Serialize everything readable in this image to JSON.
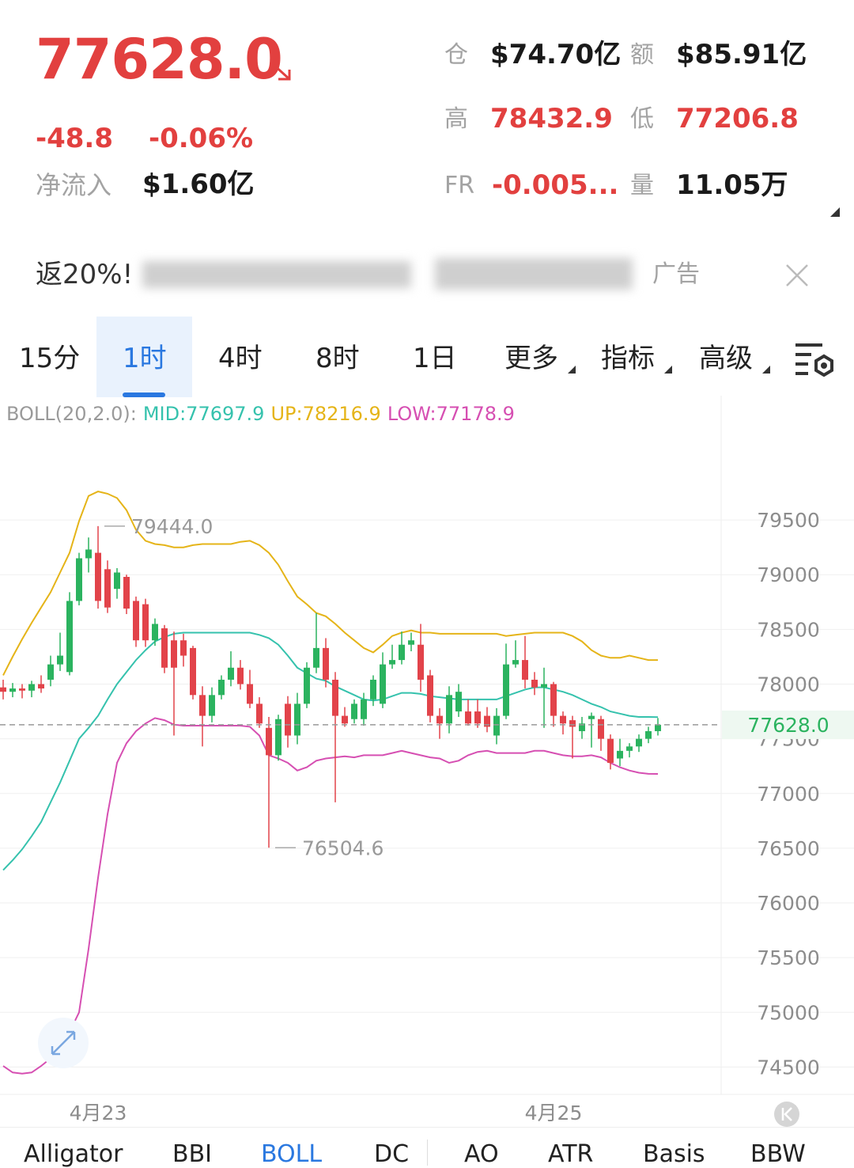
{
  "header": {
    "price": "77628.0",
    "change": "-48.8",
    "change_pct": "-0.06%",
    "net_inflow": {
      "label": "净流入",
      "value": "$1.60亿"
    },
    "stats": [
      {
        "label": "仓",
        "value": "$74.70亿"
      },
      {
        "label": "额",
        "value": "$85.91亿"
      },
      {
        "label": "高",
        "value": "78432.9"
      },
      {
        "label": "低",
        "value": "77206.8"
      },
      {
        "label": "FR",
        "value": "-0.005..."
      },
      {
        "label": "量",
        "value": "11.05万"
      }
    ]
  },
  "ad": {
    "text": "返20%!",
    "tag": "广告"
  },
  "tabs": [
    "15分",
    "1时",
    "4时",
    "8时",
    "1日",
    "更多",
    "指标",
    "高级"
  ],
  "active_tab_index": 1,
  "indicator_tabs": [
    "Alligator",
    "BBI",
    "BOLL",
    "DC",
    "AO",
    "ATR",
    "Basis",
    "BBW"
  ],
  "active_indicator_index": 2,
  "chart_data": {
    "type": "candlestick",
    "indicator_label": "BOLL(20,2.0):",
    "categories": [
      null,
      null,
      null,
      null,
      null,
      null,
      null,
      null,
      null,
      null,
      "4月23",
      null,
      null,
      null,
      null,
      null,
      null,
      null,
      null,
      null,
      null,
      null,
      null,
      null,
      null,
      null,
      null,
      null,
      null,
      null,
      null,
      null,
      null,
      null,
      null,
      null,
      null,
      null,
      null,
      null,
      null,
      null,
      null,
      null,
      null,
      null,
      null,
      null,
      null,
      null,
      null,
      null,
      null,
      null,
      null,
      null,
      null,
      null,
      "4月25",
      null,
      null,
      null,
      null,
      null,
      null,
      null,
      null,
      null,
      null,
      null
    ],
    "candles": {
      "up_color": "#2bb35f",
      "down_color": "#e2434a",
      "open": [
        77970,
        77930,
        77960,
        77940,
        78000,
        78040,
        78180,
        78110,
        78760,
        79150,
        79200,
        79050,
        78870,
        78980,
        78760,
        78730,
        78400,
        78510,
        78400,
        78400,
        78330,
        77900,
        77710,
        77900,
        78040,
        78150,
        78000,
        77820,
        77600,
        77350,
        77820,
        77530,
        77820,
        78150,
        78330,
        78040,
        77710,
        77680,
        77680,
        77860,
        77820,
        78180,
        78220,
        78360,
        78360,
        78080,
        77710,
        77640,
        77750,
        77750,
        77750,
        77710,
        77530,
        77710,
        78180,
        78220,
        78040,
        77970,
        78000,
        77710,
        77670,
        77570,
        77680,
        77680,
        77500,
        77320,
        77390,
        77430,
        77500,
        77570
      ],
      "high": [
        78040,
        78010,
        78000,
        78030,
        78080,
        78260,
        78470,
        78840,
        79200,
        79340,
        79444.0,
        79130,
        79060,
        79000,
        78800,
        78780,
        78600,
        78540,
        78480,
        78460,
        78350,
        77980,
        77970,
        78080,
        78300,
        78220,
        78130,
        77880,
        77700,
        77720,
        77890,
        77920,
        78200,
        78650,
        78420,
        78110,
        77790,
        77860,
        77920,
        78080,
        78290,
        78360,
        78480,
        78470,
        78550,
        78130,
        77780,
        77980,
        78000,
        77860,
        77860,
        77790,
        77780,
        78370,
        78400,
        78440,
        78110,
        78150,
        78020,
        77750,
        77710,
        77700,
        77740,
        77710,
        77540,
        77500,
        77460,
        77540,
        77610,
        77690
      ],
      "low": [
        77860,
        77880,
        77870,
        77880,
        77920,
        77980,
        78120,
        78080,
        78720,
        79020,
        78690,
        78650,
        78780,
        78640,
        78340,
        78340,
        78350,
        78100,
        77530,
        78160,
        77860,
        77430,
        77650,
        77860,
        77980,
        77950,
        77780,
        77600,
        76504.6,
        77300,
        77420,
        77450,
        77780,
        78100,
        77970,
        76920,
        77610,
        77640,
        77620,
        77800,
        77780,
        78140,
        78180,
        78300,
        77930,
        77650,
        77500,
        77550,
        77700,
        77620,
        77600,
        77560,
        77450,
        77680,
        78150,
        77960,
        77900,
        77600,
        77610,
        77540,
        77320,
        77500,
        77420,
        77390,
        77220,
        77250,
        77330,
        77380,
        77460,
        77530
      ],
      "close": [
        77930,
        77960,
        77940,
        78000,
        77960,
        78180,
        78260,
        78760,
        79150,
        79230,
        78760,
        78700,
        79020,
        78690,
        78400,
        78400,
        78550,
        78150,
        78150,
        78260,
        77900,
        77710,
        77900,
        78040,
        78150,
        78000,
        77820,
        77640,
        77350,
        77680,
        77530,
        77820,
        78150,
        78330,
        78040,
        77710,
        77640,
        77820,
        77860,
        78040,
        78180,
        78220,
        78360,
        78400,
        78040,
        77710,
        77640,
        77900,
        77930,
        77640,
        77640,
        77610,
        77710,
        78180,
        78220,
        78040,
        77970,
        78000,
        77710,
        77640,
        77610,
        77640,
        77710,
        77500,
        77280,
        77390,
        77430,
        77500,
        77570,
        77628
      ]
    },
    "boll": [
      {
        "label": "MID:77697.9",
        "color": "#35c2ad",
        "values": [
          76300,
          76390,
          76490,
          76610,
          76740,
          76920,
          77100,
          77300,
          77500,
          77600,
          77710,
          77860,
          78000,
          78110,
          78220,
          78310,
          78390,
          78430,
          78460,
          78470,
          78470,
          78470,
          78470,
          78470,
          78470,
          78470,
          78470,
          78450,
          78420,
          78360,
          78260,
          78150,
          78100,
          78050,
          78030,
          77980,
          77940,
          77900,
          77860,
          77850,
          77860,
          77890,
          77920,
          77920,
          77910,
          77890,
          77880,
          77870,
          77860,
          77860,
          77860,
          77860,
          77860,
          77890,
          77920,
          77950,
          77970,
          77970,
          77950,
          77930,
          77900,
          77860,
          77820,
          77790,
          77750,
          77730,
          77710,
          77700,
          77700,
          77698
        ]
      },
      {
        "label": "UP:78216.9",
        "color": "#e5b418",
        "values": [
          78080,
          78250,
          78410,
          78560,
          78700,
          78840,
          79020,
          79200,
          79490,
          79720,
          79760,
          79740,
          79700,
          79590,
          79410,
          79310,
          79280,
          79270,
          79250,
          79250,
          79270,
          79280,
          79280,
          79280,
          79280,
          79300,
          79310,
          79270,
          79200,
          79090,
          78940,
          78800,
          78730,
          78650,
          78620,
          78550,
          78470,
          78400,
          78330,
          78290,
          78360,
          78440,
          78470,
          78490,
          78470,
          78470,
          78460,
          78460,
          78460,
          78460,
          78460,
          78460,
          78460,
          78440,
          78450,
          78460,
          78470,
          78470,
          78470,
          78470,
          78440,
          78390,
          78310,
          78260,
          78240,
          78240,
          78260,
          78240,
          78220,
          78220
        ]
      },
      {
        "label": "LOW:77178.9",
        "color": "#d64fb2",
        "values": [
          74510,
          74450,
          74440,
          74450,
          74510,
          74580,
          74680,
          74820,
          75000,
          75580,
          76230,
          76810,
          77280,
          77460,
          77570,
          77640,
          77690,
          77670,
          77630,
          77620,
          77620,
          77620,
          77620,
          77620,
          77620,
          77620,
          77610,
          77530,
          77350,
          77320,
          77280,
          77210,
          77240,
          77300,
          77320,
          77330,
          77340,
          77330,
          77350,
          77350,
          77350,
          77370,
          77390,
          77370,
          77350,
          77330,
          77320,
          77280,
          77300,
          77350,
          77380,
          77390,
          77370,
          77370,
          77370,
          77370,
          77390,
          77390,
          77370,
          77350,
          77340,
          77340,
          77350,
          77330,
          77280,
          77240,
          77210,
          77190,
          77180,
          77179
        ]
      }
    ],
    "annotations": [
      {
        "text": "79444.0",
        "value": 79444.0
      },
      {
        "text": "76504.6",
        "value": 76504.6
      }
    ],
    "last_price": {
      "value": 77628,
      "label": "77628.0"
    },
    "ylim": [
      74250,
      80600
    ],
    "yticks": [
      79500,
      79000,
      78500,
      78000,
      77500,
      77000,
      76500,
      76000,
      75500,
      75000,
      74500
    ],
    "grid": true
  }
}
